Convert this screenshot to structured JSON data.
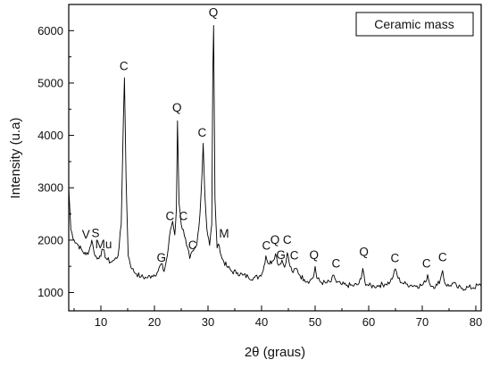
{
  "chart_data": {
    "type": "line",
    "xlabel": "2θ (graus)",
    "ylabel": "Intensity (u.a)",
    "xlim": [
      4,
      81
    ],
    "ylim": [
      650,
      6500
    ],
    "x_ticks": [
      10,
      20,
      30,
      40,
      50,
      60,
      70,
      80
    ],
    "y_ticks": [
      1000,
      2000,
      3000,
      4000,
      5000,
      6000
    ],
    "grid": false,
    "legend": {
      "text": "Ceramic mass",
      "placement": "top-right"
    },
    "series": [
      {
        "color": "#000000",
        "points": [
          [
            4.0,
            3000
          ],
          [
            4.4,
            2200
          ],
          [
            5.0,
            2000
          ],
          [
            5.8,
            1900
          ],
          [
            6.5,
            1800
          ],
          [
            7.2,
            1720
          ],
          [
            7.8,
            1800
          ],
          [
            8.3,
            2000
          ],
          [
            8.7,
            1780
          ],
          [
            9.3,
            1640
          ],
          [
            9.8,
            1700
          ],
          [
            10.4,
            1820
          ],
          [
            11.0,
            1650
          ],
          [
            11.8,
            1580
          ],
          [
            12.5,
            1620
          ],
          [
            13.2,
            1700
          ],
          [
            13.8,
            2300
          ],
          [
            14.2,
            4300
          ],
          [
            14.4,
            5100
          ],
          [
            14.7,
            3200
          ],
          [
            15.1,
            1700
          ],
          [
            15.8,
            1450
          ],
          [
            16.6,
            1360
          ],
          [
            17.5,
            1300
          ],
          [
            18.5,
            1280
          ],
          [
            19.5,
            1320
          ],
          [
            20.5,
            1380
          ],
          [
            21.3,
            1550
          ],
          [
            21.8,
            1400
          ],
          [
            22.4,
            1700
          ],
          [
            23.0,
            2200
          ],
          [
            23.4,
            2360
          ],
          [
            23.8,
            2100
          ],
          [
            24.1,
            2600
          ],
          [
            24.3,
            4280
          ],
          [
            24.6,
            2700
          ],
          [
            25.0,
            2300
          ],
          [
            25.4,
            2200
          ],
          [
            26.0,
            1900
          ],
          [
            26.6,
            1650
          ],
          [
            27.3,
            1800
          ],
          [
            27.9,
            1900
          ],
          [
            28.5,
            2500
          ],
          [
            28.9,
            3300
          ],
          [
            29.1,
            3850
          ],
          [
            29.4,
            2900
          ],
          [
            29.8,
            2200
          ],
          [
            30.3,
            1900
          ],
          [
            30.7,
            2300
          ],
          [
            30.9,
            5200
          ],
          [
            31.05,
            6100
          ],
          [
            31.3,
            2800
          ],
          [
            31.7,
            1850
          ],
          [
            32.1,
            1900
          ],
          [
            32.6,
            1650
          ],
          [
            33.5,
            1500
          ],
          [
            34.5,
            1400
          ],
          [
            35.5,
            1380
          ],
          [
            36.5,
            1330
          ],
          [
            37.5,
            1300
          ],
          [
            38.5,
            1280
          ],
          [
            39.5,
            1300
          ],
          [
            40.3,
            1420
          ],
          [
            40.8,
            1700
          ],
          [
            41.3,
            1550
          ],
          [
            42.0,
            1600
          ],
          [
            42.6,
            1740
          ],
          [
            43.2,
            1520
          ],
          [
            43.8,
            1620
          ],
          [
            44.3,
            1480
          ],
          [
            44.8,
            1760
          ],
          [
            45.3,
            1500
          ],
          [
            45.9,
            1380
          ],
          [
            46.5,
            1460
          ],
          [
            47.2,
            1320
          ],
          [
            48.0,
            1250
          ],
          [
            49.0,
            1220
          ],
          [
            49.7,
            1300
          ],
          [
            50.0,
            1500
          ],
          [
            50.3,
            1280
          ],
          [
            51.0,
            1200
          ],
          [
            52.0,
            1180
          ],
          [
            53.0,
            1210
          ],
          [
            53.5,
            1330
          ],
          [
            54.0,
            1190
          ],
          [
            55.0,
            1150
          ],
          [
            56.0,
            1140
          ],
          [
            57.0,
            1130
          ],
          [
            58.0,
            1150
          ],
          [
            58.6,
            1260
          ],
          [
            58.9,
            1460
          ],
          [
            59.3,
            1200
          ],
          [
            60.0,
            1130
          ],
          [
            61.0,
            1120
          ],
          [
            62.0,
            1140
          ],
          [
            63.0,
            1160
          ],
          [
            64.0,
            1200
          ],
          [
            64.6,
            1320
          ],
          [
            65.0,
            1450
          ],
          [
            65.5,
            1270
          ],
          [
            66.3,
            1180
          ],
          [
            67.0,
            1160
          ],
          [
            68.0,
            1140
          ],
          [
            69.0,
            1130
          ],
          [
            70.0,
            1140
          ],
          [
            70.6,
            1200
          ],
          [
            71.0,
            1340
          ],
          [
            71.4,
            1160
          ],
          [
            72.0,
            1120
          ],
          [
            72.8,
            1140
          ],
          [
            73.4,
            1260
          ],
          [
            73.8,
            1420
          ],
          [
            74.2,
            1180
          ],
          [
            75.0,
            1120
          ],
          [
            75.8,
            1180
          ],
          [
            76.5,
            1100
          ],
          [
            77.5,
            1080
          ],
          [
            78.5,
            1100
          ],
          [
            79.5,
            1090
          ],
          [
            80.5,
            1140
          ],
          [
            81.0,
            1120
          ]
        ]
      }
    ],
    "annotations": [
      {
        "text": "V",
        "x": 7.2,
        "y": 2030
      },
      {
        "text": "S",
        "x": 9.0,
        "y": 2060
      },
      {
        "text": "Mu",
        "x": 10.5,
        "y": 1840
      },
      {
        "text": "C",
        "x": 14.3,
        "y": 5250
      },
      {
        "text": "G",
        "x": 21.3,
        "y": 1590
      },
      {
        "text": "C",
        "x": 22.9,
        "y": 2380
      },
      {
        "text": "Q",
        "x": 24.2,
        "y": 4450
      },
      {
        "text": "C",
        "x": 25.4,
        "y": 2380
      },
      {
        "text": "C",
        "x": 27.1,
        "y": 1830
      },
      {
        "text": "C",
        "x": 28.9,
        "y": 3980
      },
      {
        "text": "Q",
        "x": 31.0,
        "y": 6270
      },
      {
        "text": "M",
        "x": 33.0,
        "y": 2050
      },
      {
        "text": "C",
        "x": 40.9,
        "y": 1820
      },
      {
        "text": "Q",
        "x": 42.5,
        "y": 1930
      },
      {
        "text": "G",
        "x": 43.6,
        "y": 1640
      },
      {
        "text": "C",
        "x": 44.8,
        "y": 1930
      },
      {
        "text": "C",
        "x": 46.1,
        "y": 1630
      },
      {
        "text": "Q",
        "x": 49.8,
        "y": 1640
      },
      {
        "text": "C",
        "x": 53.9,
        "y": 1480
      },
      {
        "text": "Q",
        "x": 59.1,
        "y": 1700
      },
      {
        "text": "C",
        "x": 64.9,
        "y": 1580
      },
      {
        "text": "C",
        "x": 70.8,
        "y": 1480
      },
      {
        "text": "C",
        "x": 73.8,
        "y": 1600
      }
    ]
  }
}
